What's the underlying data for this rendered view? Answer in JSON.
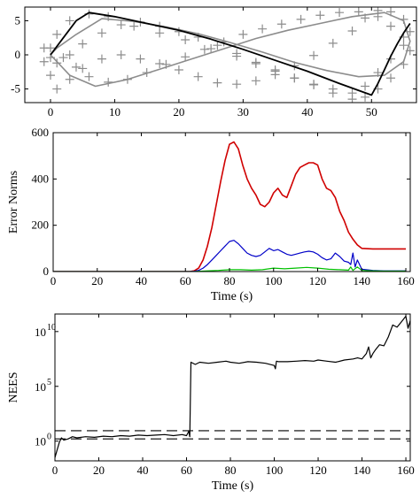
{
  "chart_data": [
    {
      "type": "line",
      "title": "",
      "xlabel": "",
      "ylabel": "",
      "xlim": [
        -4,
        57
      ],
      "ylim": [
        -7,
        7
      ],
      "xticks": [
        "0",
        "10",
        "20",
        "30",
        "40",
        "50"
      ],
      "yticks": [
        "5",
        "0",
        "-5"
      ],
      "grid": false,
      "series": [
        {
          "style": "landmarks-plus-markers",
          "color": "#8c8c8c",
          "x": [
            -1,
            1,
            3,
            6,
            9,
            13,
            17,
            21,
            25,
            29,
            32,
            35,
            38,
            41,
            44,
            47,
            49,
            51,
            53,
            55,
            56,
            55,
            53,
            51,
            49,
            47,
            44,
            41,
            38,
            35,
            32,
            29,
            26,
            23,
            20,
            17,
            14,
            11,
            8,
            5,
            3,
            1,
            0,
            -1,
            0,
            2,
            4,
            6,
            9,
            12,
            15,
            18,
            21,
            24,
            27,
            30,
            33,
            36,
            39,
            42,
            45,
            48,
            51,
            53,
            55,
            56,
            55,
            53,
            51,
            49,
            47,
            44,
            41,
            38,
            35,
            32,
            29,
            26,
            23,
            20,
            17,
            14,
            11,
            8,
            5,
            3,
            1,
            0
          ],
          "y": [
            1,
            3,
            5,
            6,
            5.6,
            4.2,
            3.2,
            2.2,
            0.9,
            -0.2,
            -1.3,
            -2.4,
            -3.4,
            -4.3,
            -5,
            -5.6,
            -4.6,
            -2.6,
            -0.6,
            1.4,
            3.4,
            5.2,
            6.3,
            6.5,
            5.4,
            3.5,
            1.7,
            -0.1,
            -1.6,
            -2.9,
            -3.8,
            -4.3,
            -4.1,
            -3.2,
            -2.2,
            -1.3,
            -0.6,
            0,
            -0.6,
            -2,
            -3.6,
            -5,
            -3,
            -1,
            1,
            -0.4,
            -1.8,
            -3.2,
            -4,
            -3.6,
            -2.6,
            -1.4,
            -0.3,
            0.8,
            1.9,
            3,
            3.8,
            4.5,
            5.2,
            5.8,
            6.2,
            6.3,
            5.6,
            4.2,
            2.6,
            0.6,
            -1.4,
            -3.4,
            -5,
            -6.2,
            -6.5,
            -5.6,
            -4.4,
            -3.4,
            -2.2,
            -1.1,
            0.2,
            1.4,
            2.6,
            3.4,
            4.2,
            4.8,
            4.4,
            3.2,
            1.6,
            0,
            -1.2,
            -0.4
          ]
        },
        {
          "style": "trajectory-gray",
          "color": "#8c8c8c",
          "x": [
            0,
            3,
            7,
            12,
            17,
            22,
            27,
            32,
            37,
            42,
            47,
            52,
            55,
            56,
            55,
            52,
            48,
            43,
            38,
            33,
            28,
            23,
            18,
            13,
            8,
            4,
            1,
            0
          ],
          "y": [
            0,
            -3,
            -4.6,
            -3.6,
            -2.1,
            -0.6,
            0.9,
            2.4,
            3.6,
            4.6,
            5.6,
            6.2,
            5,
            2,
            -1,
            -3,
            -3.2,
            -2.3,
            -1.1,
            0.4,
            1.8,
            3.1,
            4.1,
            4.9,
            5.3,
            3,
            1,
            0
          ]
        },
        {
          "style": "trajectory-estimate",
          "color": "#000000",
          "x": [
            0,
            2,
            4,
            6,
            10,
            15,
            20,
            25,
            30,
            35,
            40,
            45,
            50,
            51,
            52,
            53,
            54,
            55,
            56
          ],
          "y": [
            0,
            2.5,
            5,
            6.2,
            5.6,
            4.6,
            3.6,
            2.3,
            0.8,
            -0.8,
            -2.4,
            -4.2,
            -5.9,
            -4.2,
            -2.2,
            -0.2,
            1.6,
            3.2,
            4.6
          ]
        }
      ]
    },
    {
      "type": "line",
      "title": "",
      "xlabel": "Time (s)",
      "ylabel": "Error Norms",
      "xlim": [
        0,
        162
      ],
      "ylim": [
        0,
        600
      ],
      "xticks": [
        "0",
        "20",
        "40",
        "60",
        "80",
        "100",
        "120",
        "140",
        "160"
      ],
      "yticks": [
        "0",
        "200",
        "400",
        "600"
      ],
      "grid": false,
      "series": [
        {
          "color": "#d00000",
          "x": [
            0,
            62,
            64,
            66,
            68,
            70,
            72,
            74,
            76,
            78,
            80,
            82,
            84,
            86,
            88,
            90,
            92,
            94,
            96,
            98,
            100,
            102,
            104,
            106,
            108,
            110,
            112,
            114,
            116,
            118,
            120,
            122,
            124,
            126,
            128,
            130,
            132,
            134,
            136,
            138,
            140,
            145,
            150,
            155,
            160
          ],
          "y": [
            0,
            0,
            3,
            15,
            50,
            110,
            190,
            290,
            390,
            480,
            550,
            560,
            530,
            460,
            400,
            360,
            330,
            290,
            280,
            300,
            340,
            360,
            330,
            320,
            370,
            420,
            450,
            460,
            470,
            470,
            460,
            400,
            360,
            350,
            320,
            260,
            220,
            170,
            140,
            115,
            100,
            98,
            98,
            98,
            98
          ]
        },
        {
          "color": "#0000c8",
          "x": [
            0,
            62,
            64,
            66,
            68,
            70,
            72,
            74,
            76,
            78,
            80,
            82,
            84,
            86,
            88,
            90,
            92,
            94,
            96,
            98,
            100,
            102,
            104,
            106,
            108,
            110,
            112,
            114,
            116,
            118,
            120,
            122,
            124,
            126,
            128,
            130,
            132,
            134,
            135,
            136,
            137,
            138,
            140,
            145,
            150,
            155,
            160
          ],
          "y": [
            0,
            0,
            1,
            5,
            15,
            30,
            50,
            70,
            90,
            110,
            130,
            135,
            120,
            100,
            80,
            70,
            65,
            70,
            85,
            100,
            90,
            95,
            85,
            75,
            70,
            75,
            80,
            85,
            88,
            85,
            75,
            60,
            50,
            55,
            80,
            65,
            45,
            40,
            30,
            80,
            20,
            50,
            10,
            5,
            3,
            3,
            3
          ]
        },
        {
          "color": "#00c000",
          "x": [
            0,
            64,
            70,
            75,
            80,
            85,
            90,
            95,
            100,
            105,
            110,
            115,
            120,
            125,
            130,
            134,
            135,
            136,
            138,
            140,
            145,
            150,
            160
          ],
          "y": [
            0,
            0,
            3,
            5,
            8,
            8,
            6,
            8,
            15,
            12,
            15,
            18,
            15,
            10,
            8,
            6,
            20,
            5,
            20,
            5,
            3,
            2,
            2
          ]
        }
      ]
    },
    {
      "type": "line",
      "title": "",
      "xlabel": "Time (s)",
      "ylabel": "NEES",
      "xlim": [
        0,
        162
      ],
      "ylim": [
        -1.8,
        11.6
      ],
      "yscale": "log10",
      "xticks": [
        "0",
        "20",
        "40",
        "60",
        "80",
        "100",
        "120",
        "140",
        "160"
      ],
      "yticks": [
        {
          "base": "10",
          "exp": "0"
        },
        {
          "base": "10",
          "exp": "5"
        },
        {
          "base": "10",
          "exp": "10"
        }
      ],
      "grid": false,
      "series": [
        {
          "style": "NEES",
          "color": "#000000",
          "x": [
            0,
            1,
            2,
            3,
            4,
            6,
            8,
            10,
            14,
            18,
            22,
            26,
            30,
            34,
            38,
            42,
            46,
            50,
            54,
            58,
            60,
            61,
            61.5,
            62,
            64,
            66,
            70,
            74,
            78,
            80,
            84,
            88,
            92,
            96,
            100,
            100.5,
            101,
            102,
            106,
            110,
            114,
            118,
            120,
            124,
            128,
            132,
            136,
            138,
            140,
            142,
            143,
            144,
            145,
            146,
            148,
            150,
            152,
            154,
            156,
            158,
            160,
            161,
            162
          ],
          "y": [
            -1.5,
            -0.8,
            -0.1,
            0.3,
            0.1,
            0.2,
            0.4,
            0.3,
            0.4,
            0.35,
            0.45,
            0.4,
            0.5,
            0.45,
            0.55,
            0.5,
            0.55,
            0.6,
            0.5,
            0.6,
            0.5,
            0.9,
            0.4,
            7.2,
            7.0,
            7.2,
            7.1,
            7.2,
            7.3,
            7.2,
            7.1,
            7.25,
            7.2,
            7.1,
            6.9,
            6.6,
            7.3,
            7.25,
            7.25,
            7.3,
            7.35,
            7.3,
            7.4,
            7.3,
            7.2,
            7.4,
            7.5,
            7.6,
            7.5,
            8.0,
            8.6,
            7.6,
            8.0,
            8.3,
            8.8,
            8.7,
            9.5,
            10.6,
            10.4,
            10.9,
            11.4,
            10.3,
            11.0
          ]
        },
        {
          "style": "dashed-bound",
          "color": "#000000",
          "x": [
            0,
            162
          ],
          "y": [
            0.95,
            0.95
          ]
        },
        {
          "style": "dashed-bound",
          "color": "#000000",
          "x": [
            0,
            162
          ],
          "y": [
            0.2,
            0.2
          ]
        }
      ]
    }
  ]
}
